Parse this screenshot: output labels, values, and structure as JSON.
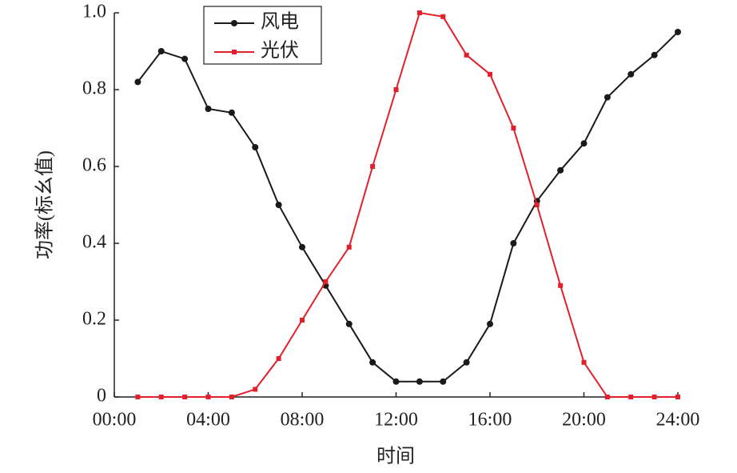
{
  "chart_data": {
    "type": "line",
    "x_label": "时间",
    "y_label": "功率(标幺值)",
    "x": [
      1,
      2,
      3,
      4,
      5,
      6,
      7,
      8,
      9,
      10,
      11,
      12,
      13,
      14,
      15,
      16,
      17,
      18,
      19,
      20,
      21,
      22,
      23,
      24
    ],
    "series": [
      {
        "name": "风电",
        "color": "#1a1a1a",
        "marker": "circle",
        "values": [
          0.82,
          0.9,
          0.88,
          0.75,
          0.74,
          0.65,
          0.5,
          0.39,
          0.29,
          0.19,
          0.09,
          0.04,
          0.04,
          0.04,
          0.09,
          0.19,
          0.4,
          0.51,
          0.59,
          0.66,
          0.78,
          0.84,
          0.89,
          0.95
        ]
      },
      {
        "name": "光伏",
        "color": "#e0202a",
        "marker": "square",
        "values": [
          0,
          0,
          0,
          0,
          0,
          0.02,
          0.1,
          0.2,
          0.3,
          0.39,
          0.6,
          0.8,
          1.0,
          0.99,
          0.89,
          0.84,
          0.7,
          0.5,
          0.29,
          0.09,
          0,
          0,
          0,
          0
        ]
      }
    ],
    "xlim": [
      0,
      24
    ],
    "xticks": [
      {
        "value": 0,
        "label": "00:00"
      },
      {
        "value": 4,
        "label": "04:00"
      },
      {
        "value": 8,
        "label": "08:00"
      },
      {
        "value": 12,
        "label": "12:00"
      },
      {
        "value": 16,
        "label": "16:00"
      },
      {
        "value": 20,
        "label": "20:00"
      },
      {
        "value": 24,
        "label": "24:00"
      }
    ],
    "ylim": [
      0,
      1
    ],
    "yticks": [
      0,
      0.2,
      0.4,
      0.6,
      0.8,
      {
        "value": 1,
        "label": "1.0"
      }
    ],
    "legend": "upper-left"
  }
}
